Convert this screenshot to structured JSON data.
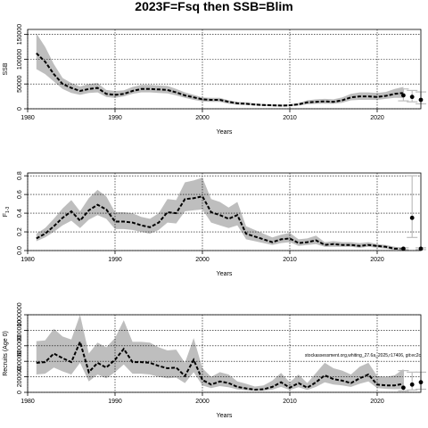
{
  "figure": {
    "title": "2023F=Fsq then SSB=Blim",
    "watermark": "stockassessment.org,whiting_27.6a_2025,r17406, git:ec2c",
    "colors": {
      "band": "#bebebe",
      "line": "#000000",
      "interval": "#bebebe",
      "grid": "#000000"
    }
  },
  "chart_data": [
    {
      "type": "line",
      "ylabel": "SSB",
      "xlabel": "Years",
      "xlim": [
        1980,
        2025
      ],
      "ylim": [
        0,
        160000
      ],
      "xticks": [
        1980,
        1990,
        2000,
        2010,
        2020
      ],
      "yticks": [
        0,
        50000,
        100000,
        150000
      ],
      "ytick_labels": [
        "0",
        "50000",
        "100000",
        "150000"
      ],
      "grid": true,
      "estimate": {
        "x": [
          1981,
          1982,
          1983,
          1984,
          1985,
          1986,
          1987,
          1988,
          1989,
          1990,
          1991,
          1992,
          1993,
          1994,
          1995,
          1996,
          1997,
          1998,
          1999,
          2000,
          2001,
          2002,
          2003,
          2004,
          2005,
          2006,
          2007,
          2008,
          2009,
          2010,
          2011,
          2012,
          2013,
          2014,
          2015,
          2016,
          2017,
          2018,
          2019,
          2020,
          2021,
          2022,
          2023
        ],
        "y": [
          112000,
          95000,
          70000,
          50000,
          42000,
          36000,
          40000,
          42000,
          30000,
          28000,
          30000,
          36000,
          40000,
          40000,
          39000,
          38000,
          33000,
          27000,
          23000,
          19000,
          18000,
          18000,
          14000,
          11000,
          10000,
          8500,
          7500,
          7000,
          6500,
          7000,
          9000,
          13000,
          14000,
          15000,
          14000,
          17000,
          23000,
          25000,
          25000,
          24000,
          26000,
          30000,
          32000
        ],
        "lower": [
          80000,
          70000,
          55000,
          40000,
          32000,
          28000,
          32000,
          33000,
          24000,
          22000,
          25000,
          30000,
          33000,
          33000,
          32000,
          31000,
          27000,
          22000,
          18000,
          15000,
          14000,
          14000,
          10000,
          8000,
          7500,
          6500,
          5500,
          5000,
          4500,
          5000,
          6500,
          9000,
          10000,
          10500,
          10000,
          12000,
          17000,
          18000,
          18000,
          18000,
          20000,
          22000,
          22000
        ],
        "upper": [
          152000,
          125000,
          90000,
          62000,
          52000,
          45000,
          50000,
          52000,
          38000,
          36000,
          37000,
          44000,
          48000,
          48000,
          47000,
          46000,
          40000,
          33000,
          28000,
          23000,
          22000,
          22000,
          17000,
          14000,
          13000,
          11000,
          9500,
          9000,
          8500,
          9000,
          11500,
          17000,
          19000,
          20000,
          19000,
          23000,
          30000,
          33000,
          33000,
          32000,
          34000,
          40000,
          44000
        ]
      },
      "forecast": [
        {
          "x": 2023,
          "y": 27000,
          "lower": 16000,
          "upper": 40000
        },
        {
          "x": 2024,
          "y": 24000,
          "lower": 14000,
          "upper": 37000
        },
        {
          "x": 2025,
          "y": 18000,
          "lower": 10000,
          "upper": 34000
        }
      ]
    },
    {
      "type": "line",
      "ylabel": "F",
      "ylabel_sub": "1-3",
      "xlabel": "Years",
      "xlim": [
        1980,
        2025
      ],
      "ylim": [
        0,
        0.83
      ],
      "xticks": [
        1980,
        1990,
        2000,
        2010,
        2020
      ],
      "yticks": [
        0.0,
        0.2,
        0.4,
        0.6,
        0.8
      ],
      "ytick_labels": [
        "0.0",
        "0.2",
        "0.4",
        "0.6",
        "0.8"
      ],
      "grid": true,
      "estimate": {
        "x": [
          1981,
          1982,
          1983,
          1984,
          1985,
          1986,
          1987,
          1988,
          1989,
          1990,
          1991,
          1992,
          1993,
          1994,
          1995,
          1996,
          1997,
          1998,
          1999,
          2000,
          2001,
          2002,
          2003,
          2004,
          2005,
          2006,
          2007,
          2008,
          2009,
          2010,
          2011,
          2012,
          2013,
          2014,
          2015,
          2016,
          2017,
          2018,
          2019,
          2020,
          2021,
          2022,
          2023
        ],
        "y": [
          0.13,
          0.18,
          0.26,
          0.35,
          0.42,
          0.32,
          0.43,
          0.49,
          0.44,
          0.31,
          0.31,
          0.3,
          0.27,
          0.25,
          0.3,
          0.41,
          0.4,
          0.55,
          0.56,
          0.58,
          0.41,
          0.38,
          0.34,
          0.38,
          0.18,
          0.15,
          0.12,
          0.09,
          0.12,
          0.13,
          0.08,
          0.09,
          0.11,
          0.06,
          0.07,
          0.06,
          0.06,
          0.05,
          0.06,
          0.05,
          0.04,
          0.02,
          0.02
        ],
        "lower": [
          0.1,
          0.14,
          0.2,
          0.27,
          0.32,
          0.24,
          0.33,
          0.38,
          0.34,
          0.23,
          0.23,
          0.22,
          0.2,
          0.18,
          0.22,
          0.3,
          0.29,
          0.42,
          0.43,
          0.44,
          0.3,
          0.27,
          0.24,
          0.27,
          0.12,
          0.1,
          0.08,
          0.06,
          0.08,
          0.09,
          0.05,
          0.06,
          0.07,
          0.04,
          0.04,
          0.04,
          0.04,
          0.03,
          0.04,
          0.03,
          0.02,
          0.01,
          0.01
        ],
        "upper": [
          0.18,
          0.24,
          0.34,
          0.45,
          0.54,
          0.42,
          0.56,
          0.65,
          0.58,
          0.41,
          0.41,
          0.4,
          0.36,
          0.34,
          0.4,
          0.55,
          0.54,
          0.73,
          0.75,
          0.78,
          0.55,
          0.52,
          0.46,
          0.52,
          0.26,
          0.22,
          0.18,
          0.14,
          0.17,
          0.19,
          0.12,
          0.13,
          0.16,
          0.09,
          0.1,
          0.09,
          0.09,
          0.08,
          0.09,
          0.07,
          0.06,
          0.04,
          0.03
        ]
      },
      "forecast": [
        {
          "x": 2023,
          "y": 0.02,
          "lower": 0.01,
          "upper": 0.03
        },
        {
          "x": 2024,
          "y": 0.35,
          "lower": 0.14,
          "upper": 0.8
        },
        {
          "x": 2025,
          "y": 0.02,
          "lower": 0.01,
          "upper": 0.03
        }
      ]
    },
    {
      "type": "line",
      "ylabel": "Recruits (Age 0)",
      "xlabel": "Years",
      "xlim": [
        1980,
        2025
      ],
      "ylim": [
        0,
        1000000
      ],
      "xticks": [
        1980,
        1990,
        2000,
        2010,
        2020
      ],
      "yticks": [
        0,
        200000,
        400000,
        600000,
        800000,
        1000000
      ],
      "ytick_labels": [
        "0",
        "200000",
        "400000",
        "600000",
        "800000",
        "1000000"
      ],
      "grid": true,
      "estimate": {
        "x": [
          1981,
          1982,
          1983,
          1984,
          1985,
          1986,
          1987,
          1988,
          1989,
          1990,
          1991,
          1992,
          1993,
          1994,
          1995,
          1996,
          1997,
          1998,
          1999,
          2000,
          2001,
          2002,
          2003,
          2004,
          2005,
          2006,
          2007,
          2008,
          2009,
          2010,
          2011,
          2012,
          2013,
          2014,
          2015,
          2016,
          2017,
          2018,
          2019,
          2020,
          2021,
          2022,
          2023
        ],
        "y": [
          380000,
          390000,
          500000,
          440000,
          390000,
          650000,
          260000,
          380000,
          320000,
          420000,
          560000,
          390000,
          390000,
          380000,
          340000,
          310000,
          320000,
          210000,
          420000,
          160000,
          100000,
          140000,
          120000,
          70000,
          50000,
          35000,
          40000,
          70000,
          130000,
          60000,
          120000,
          60000,
          130000,
          220000,
          170000,
          150000,
          120000,
          180000,
          230000,
          100000,
          90000,
          90000,
          110000
        ],
        "lower": [
          230000,
          240000,
          320000,
          270000,
          230000,
          380000,
          140000,
          230000,
          180000,
          260000,
          360000,
          240000,
          240000,
          230000,
          200000,
          180000,
          190000,
          120000,
          260000,
          90000,
          55000,
          80000,
          65000,
          38000,
          26000,
          18000,
          20000,
          35000,
          70000,
          30000,
          65000,
          30000,
          70000,
          130000,
          100000,
          90000,
          70000,
          110000,
          140000,
          55000,
          45000,
          40000,
          45000
        ],
        "upper": [
          660000,
          670000,
          820000,
          720000,
          680000,
          1070000,
          500000,
          640000,
          580000,
          700000,
          930000,
          650000,
          650000,
          640000,
          580000,
          540000,
          550000,
          380000,
          700000,
          310000,
          200000,
          260000,
          230000,
          140000,
          110000,
          75000,
          90000,
          150000,
          250000,
          130000,
          230000,
          120000,
          250000,
          380000,
          310000,
          280000,
          230000,
          330000,
          380000,
          210000,
          200000,
          220000,
          300000
        ]
      },
      "forecast": [
        {
          "x": 2023,
          "y": 60000,
          "lower": 20000,
          "upper": 280000
        },
        {
          "x": 2024,
          "y": 100000,
          "lower": 30000,
          "upper": 260000
        },
        {
          "x": 2025,
          "y": 130000,
          "lower": 40000,
          "upper": 260000
        }
      ]
    }
  ]
}
